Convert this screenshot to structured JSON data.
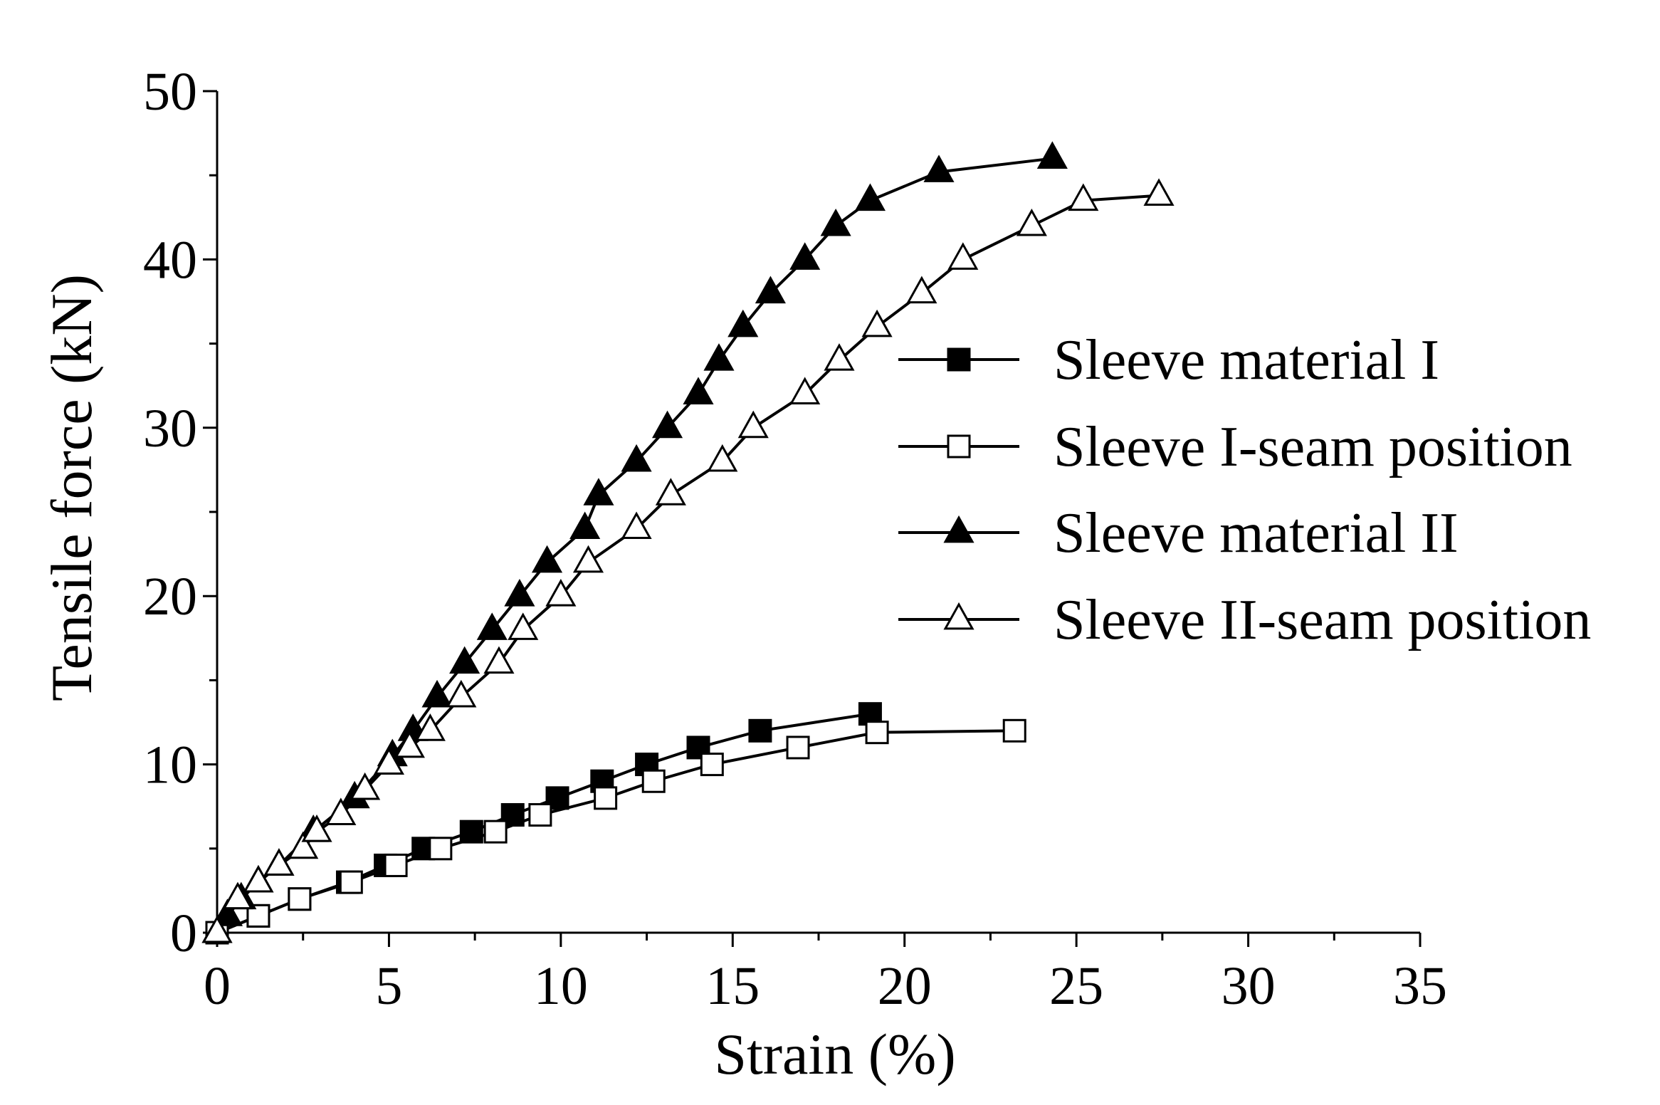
{
  "chart_data": {
    "type": "line",
    "title": "",
    "xlabel": "Strain (%)",
    "ylabel": "Tensile force (kN)",
    "xlim": [
      0,
      35
    ],
    "ylim": [
      0,
      50
    ],
    "x_ticks": [
      0,
      5,
      10,
      15,
      20,
      25,
      30,
      35
    ],
    "y_ticks": [
      0,
      10,
      20,
      30,
      40,
      50
    ],
    "grid": false,
    "legend_position": "right",
    "series": [
      {
        "name": "Sleeve material I",
        "marker": "square-filled",
        "x": [
          0,
          1.2,
          2.4,
          3.8,
          4.9,
          6.0,
          7.4,
          8.6,
          9.9,
          11.2,
          12.5,
          14.0,
          15.8,
          19.0
        ],
        "y": [
          0,
          1,
          2,
          3,
          4,
          5,
          6,
          7,
          8,
          9,
          10,
          11,
          12,
          13
        ]
      },
      {
        "name": "Sleeve I-seam position",
        "marker": "square-open",
        "x": [
          0,
          1.2,
          2.4,
          3.9,
          5.2,
          6.5,
          8.1,
          9.4,
          11.3,
          12.7,
          14.4,
          16.9,
          19.2,
          23.2
        ],
        "y": [
          0,
          1,
          2,
          3,
          4,
          5,
          6,
          7,
          8,
          9,
          10,
          11,
          11.9,
          12
        ]
      },
      {
        "name": "Sleeve material II",
        "marker": "triangle-filled",
        "x": [
          0,
          0.3,
          0.7,
          1.2,
          1.8,
          2.8,
          4.0,
          5.1,
          5.7,
          6.4,
          7.2,
          8.0,
          8.8,
          9.6,
          10.7,
          11.1,
          12.2,
          13.1,
          14.0,
          14.6,
          15.3,
          16.1,
          17.1,
          18.0,
          19.0,
          21.0,
          24.3
        ],
        "y": [
          0,
          1,
          2,
          3,
          4,
          6,
          8,
          10.5,
          12,
          14,
          16,
          18,
          20,
          22,
          24,
          26,
          28,
          30,
          32,
          34,
          36,
          38,
          40,
          42,
          43.5,
          45.2,
          46
        ]
      },
      {
        "name": "Sleeve II-seam position",
        "marker": "triangle-open",
        "x": [
          0,
          0.6,
          1.2,
          1.8,
          2.5,
          2.9,
          3.6,
          4.3,
          5.0,
          5.6,
          6.2,
          7.1,
          8.2,
          8.9,
          10.0,
          10.8,
          12.2,
          13.2,
          14.7,
          15.6,
          17.1,
          18.1,
          19.2,
          20.5,
          21.7,
          23.7,
          25.2,
          27.4
        ],
        "y": [
          0,
          2,
          3,
          4,
          5,
          6,
          7,
          8.5,
          10,
          11,
          12,
          14,
          16,
          18,
          20,
          22,
          24,
          26,
          28,
          30,
          32,
          34,
          36,
          38,
          40,
          42,
          43.5,
          43.8
        ]
      }
    ]
  }
}
